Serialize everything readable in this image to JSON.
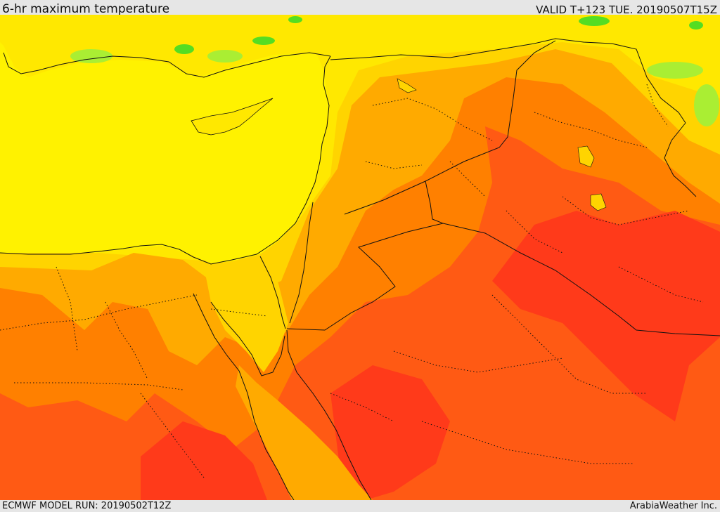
{
  "header": {
    "title": "6-hr maximum temperature",
    "valid": "VALID T+123 TUE. 20190507T15Z"
  },
  "footer": {
    "model_run": "ECMWF MODEL RUN: 20190502T12Z",
    "credit": "ArabiaWeather Inc."
  },
  "map": {
    "region": "Eastern Mediterranean, Levant, Egypt, Arabian Peninsula",
    "colors": {
      "sea": "#fff200",
      "green": "#55dd22",
      "light_green": "#aaee33",
      "light_yellow": "#ffe800",
      "gold": "#ffd400",
      "amber": "#ffaa00",
      "orange": "#ff8000",
      "red_orange": "#ff5a14",
      "red": "#ff3a1a",
      "border": "#111111"
    }
  }
}
